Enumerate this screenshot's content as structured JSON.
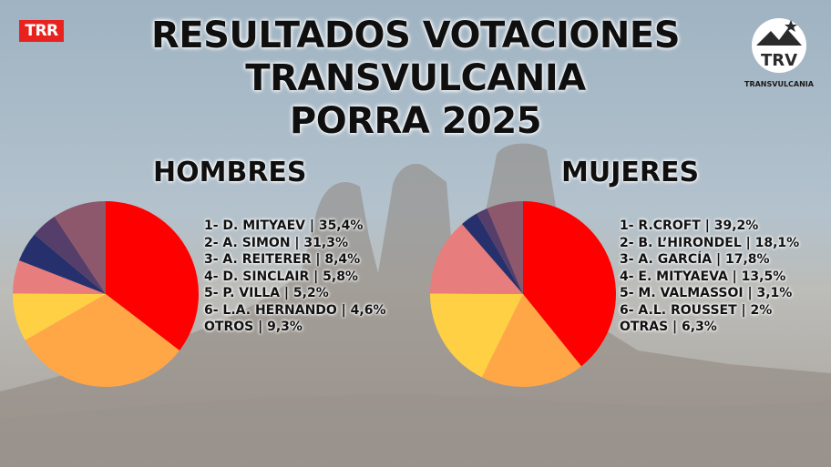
{
  "header": {
    "title_lines": [
      "RESULTADOS VOTACIONES",
      "TRANSVULCANIA",
      "PORRA 2025"
    ],
    "left_logo_text": "TRR",
    "right_logo_text": "TRANSVULCANIA",
    "right_logo_monogram": "TRV"
  },
  "colors": {
    "red": "#ff0000",
    "orange": "#ffa647",
    "yellow": "#ffd044",
    "pink": "#e87d7d",
    "navy": "#26306d",
    "purple": "#563e6a",
    "mauve": "#8d586c"
  },
  "chart_data": [
    {
      "type": "pie",
      "title": "HOMBRES",
      "labels": [
        "1- D. MITYAEV",
        "2- A. SIMON",
        "3- A. REITERER",
        "4- D. SINCLAIR",
        "5- P. VILLA",
        "6- L.A. HERNANDO",
        "OTROS"
      ],
      "values": [
        35.4,
        31.3,
        8.4,
        5.8,
        5.2,
        4.6,
        9.3
      ],
      "legend_text": [
        "1- D. MITYAEV  | 35,4%",
        "2- A. SIMON | 31,3%",
        "3- A. REITERER | 8,4%",
        "4- D. SINCLAIR | 5,8%",
        "5- P. VILLA | 5,2%",
        "6- L.A. HERNANDO | 4,6%",
        "OTROS | 9,3%"
      ],
      "colors": [
        "#ff0000",
        "#ffa647",
        "#ffd044",
        "#e87d7d",
        "#26306d",
        "#563e6a",
        "#8d586c"
      ],
      "legend": "right"
    },
    {
      "type": "pie",
      "title": "MUJERES",
      "labels": [
        "1- R.CROFT",
        "2- B. L'HIRONDEL",
        "3- A. GARCÍA",
        "4- E. MITYAEVA",
        "5- M. VALMASSOI",
        "6- A.L. ROUSSET",
        "OTRAS"
      ],
      "values": [
        39.2,
        18.1,
        17.8,
        13.5,
        3.1,
        2,
        6.3
      ],
      "legend_text": [
        "1- R.CROFT | 39,2%",
        "2- B. L’HIRONDEL | 18,1%",
        "3- A. GARCÍA | 17,8%",
        "4- E. MITYAEVA | 13,5%",
        "5- M. VALMASSOI | 3,1%",
        "6- A.L. ROUSSET | 2%",
        "OTRAS | 6,3%"
      ],
      "colors": [
        "#ff0000",
        "#ffa647",
        "#ffd044",
        "#e87d7d",
        "#26306d",
        "#563e6a",
        "#8d586c"
      ],
      "legend": "right"
    }
  ]
}
